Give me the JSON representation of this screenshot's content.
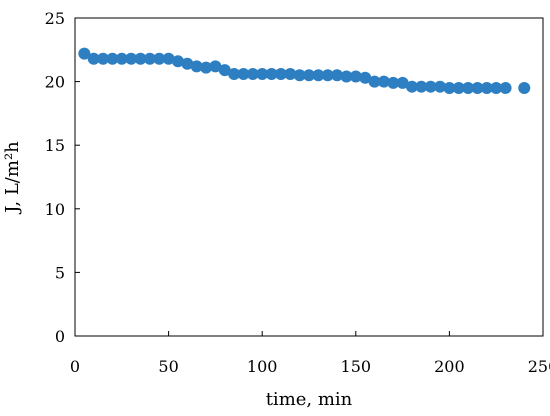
{
  "chart_data": {
    "type": "scatter",
    "title": "",
    "xlabel": "time, min",
    "ylabel": "J, L/m²h",
    "xlim": [
      0,
      250
    ],
    "ylim": [
      0,
      25
    ],
    "xticks": [
      "0",
      "50",
      "100",
      "150",
      "200",
      "250"
    ],
    "yticks": [
      "0",
      "5",
      "10",
      "15",
      "20",
      "25"
    ],
    "grid": false,
    "legend": "none",
    "series": [
      {
        "color": "#2e7fc2",
        "marker": "circle",
        "x": [
          5,
          10,
          15,
          20,
          25,
          30,
          35,
          40,
          45,
          50,
          55,
          60,
          65,
          70,
          75,
          80,
          85,
          90,
          95,
          100,
          105,
          110,
          115,
          120,
          125,
          130,
          135,
          140,
          145,
          150,
          155,
          160,
          165,
          170,
          175,
          180,
          185,
          190,
          195,
          200,
          205,
          210,
          215,
          220,
          225,
          230,
          240
        ],
        "y": [
          22.2,
          21.8,
          21.8,
          21.8,
          21.8,
          21.8,
          21.8,
          21.8,
          21.8,
          21.8,
          21.6,
          21.4,
          21.2,
          21.1,
          21.2,
          20.9,
          20.6,
          20.6,
          20.6,
          20.6,
          20.6,
          20.6,
          20.6,
          20.5,
          20.5,
          20.5,
          20.5,
          20.5,
          20.4,
          20.4,
          20.3,
          20.0,
          20.0,
          19.9,
          19.9,
          19.6,
          19.6,
          19.6,
          19.6,
          19.5,
          19.5,
          19.5,
          19.5,
          19.5,
          19.5,
          19.5,
          19.5
        ]
      }
    ]
  }
}
